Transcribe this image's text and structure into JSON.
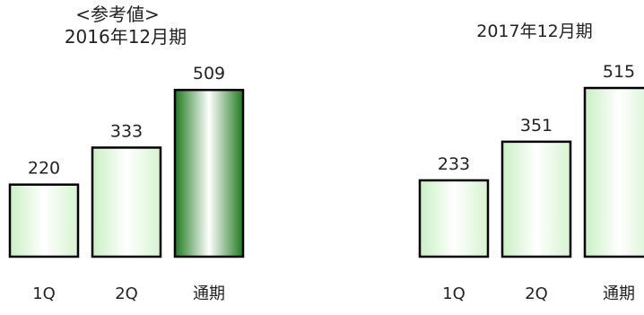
{
  "chart_data": [
    {
      "type": "bar",
      "note": "<参考値>",
      "title": "2016年12月期",
      "categories": [
        "1Q",
        "2Q",
        "通期"
      ],
      "values": [
        220,
        333,
        509
      ],
      "xlabel": "",
      "ylabel": "",
      "ylim": [
        0,
        509
      ],
      "grid": false,
      "legend": "none",
      "fill_colors": [
        "#f4fff0",
        "#f4fff0",
        "#1f7a1f"
      ]
    },
    {
      "type": "bar",
      "title": "2017年12月期",
      "categories": [
        "1Q",
        "2Q",
        "通期"
      ],
      "values": [
        233,
        351,
        515
      ],
      "xlabel": "",
      "ylabel": "",
      "ylim": [
        0,
        515
      ],
      "grid": false,
      "legend": "none",
      "fill_colors": [
        "#f4fff0",
        "#f4fff0",
        "#f4fff0"
      ]
    }
  ]
}
